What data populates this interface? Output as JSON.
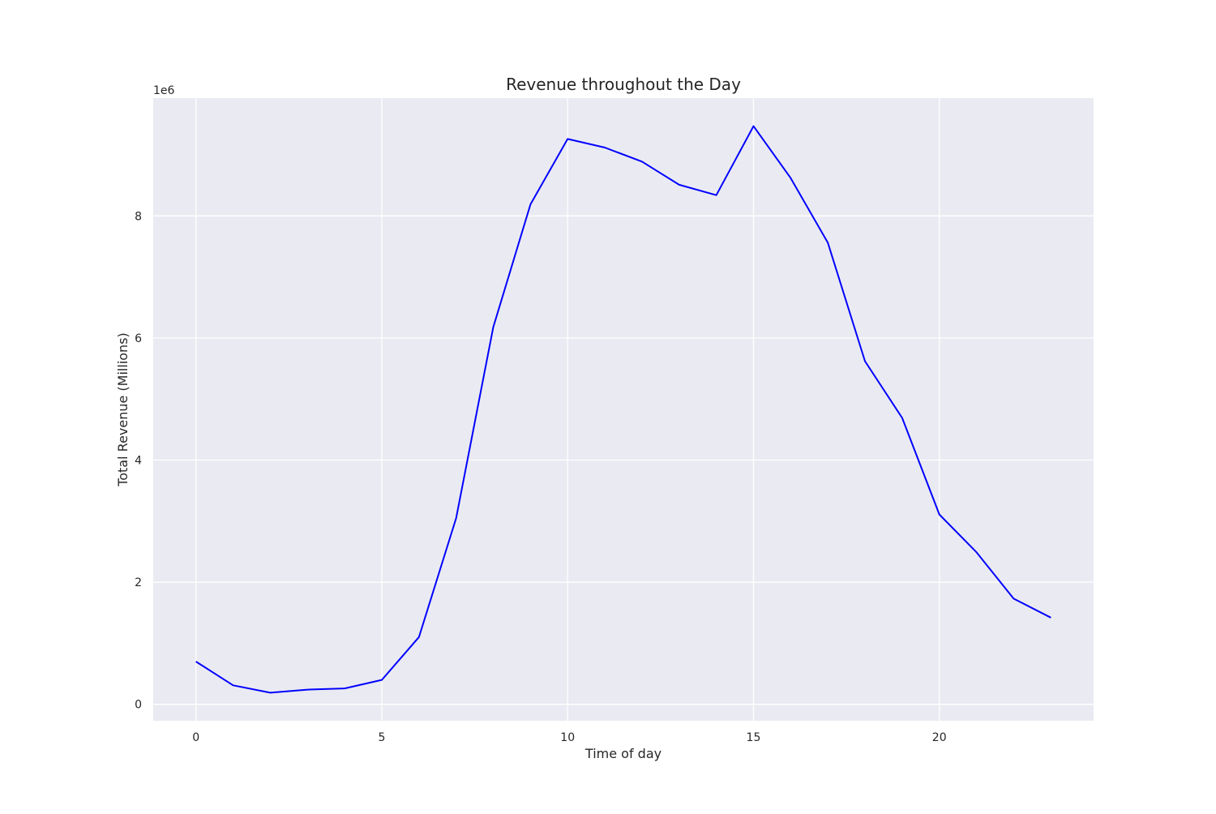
{
  "chart_data": {
    "type": "line",
    "title": "Revenue throughout the Day",
    "xlabel": "Time of day",
    "ylabel": "Total Revenue (Millions)",
    "y_offset_label": "1e6",
    "x_ticks": [
      0,
      5,
      10,
      15,
      20
    ],
    "y_ticks": [
      0,
      2,
      4,
      6,
      8
    ],
    "xlim": [
      -1.15,
      24.15
    ],
    "ylim": [
      -0.27,
      9.93
    ],
    "grid": true,
    "legend": "none",
    "series": [
      {
        "x": [
          0,
          1,
          2,
          3,
          4,
          5,
          6,
          7,
          8,
          9,
          10,
          11,
          12,
          13,
          14,
          15,
          16,
          17,
          18,
          19,
          20,
          21,
          22,
          23
        ],
        "y": [
          0.7,
          0.31,
          0.19,
          0.24,
          0.26,
          0.4,
          1.1,
          3.05,
          6.18,
          8.19,
          9.26,
          9.12,
          8.89,
          8.51,
          8.34,
          9.47,
          8.62,
          7.56,
          5.62,
          4.69,
          3.11,
          2.49,
          1.73,
          1.42
        ],
        "color": "#0000ff"
      }
    ],
    "colors": {
      "plot_background": "#eaeaf2",
      "grid": "#ffffff",
      "line": "#0000ff",
      "text": "#262626"
    }
  }
}
